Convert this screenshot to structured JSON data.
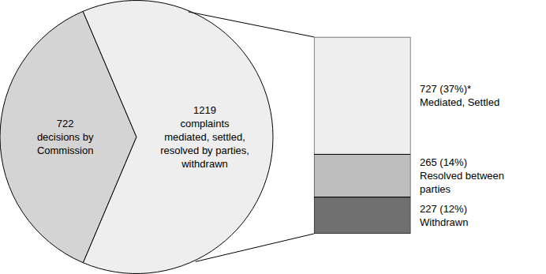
{
  "chart_data": [
    {
      "type": "pie",
      "values": [
        722,
        1219
      ],
      "value_labels": [
        "722\ndecisions by\nCommission",
        "1219\ncomplaints\nmediated, settled,\nresolved by parties,\nwithdrawn"
      ],
      "colors": [
        "#d4d4d4",
        "#eeeeee"
      ],
      "data_labels": true
    },
    {
      "type": "bar",
      "stacked": true,
      "categories": [
        null
      ],
      "ylim": [
        0,
        1219
      ],
      "tick_labels": false,
      "data_labels": true,
      "series": [
        {
          "name": "Withdrawn",
          "color": "#707070",
          "values": [
            227
          ],
          "value_labels": [
            "227 (12%)"
          ]
        },
        {
          "name": "Resolved between\nparties",
          "color": "#bdbdbd",
          "values": [
            265
          ],
          "value_labels": [
            "265 (14%)"
          ]
        },
        {
          "name": "Mediated, Settled",
          "color": "#eeeeee",
          "values": [
            727
          ],
          "value_labels": [
            "727 (37%)*"
          ]
        }
      ]
    }
  ]
}
